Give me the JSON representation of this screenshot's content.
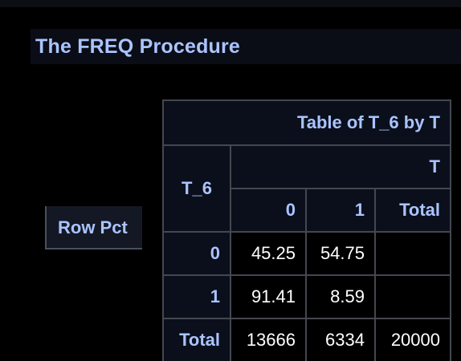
{
  "title": "The FREQ Procedure",
  "legend": "Row Pct",
  "crosstab": {
    "caption": "Table of T_6 by T",
    "row_var": "T_6",
    "col_var": "T",
    "col_headers": [
      "0",
      "1",
      "Total"
    ],
    "rows": [
      {
        "label": "0",
        "values": [
          "45.25",
          "54.75",
          ""
        ]
      },
      {
        "label": "1",
        "values": [
          "91.41",
          "8.59",
          ""
        ]
      },
      {
        "label": "Total",
        "values": [
          "13666",
          "6334",
          "20000"
        ]
      }
    ]
  },
  "colors": {
    "background": "#000000",
    "header_bg": "#0b0f1c",
    "header_text": "#aac4ff",
    "cell_text": "#ffffff",
    "border": "#44474f"
  }
}
